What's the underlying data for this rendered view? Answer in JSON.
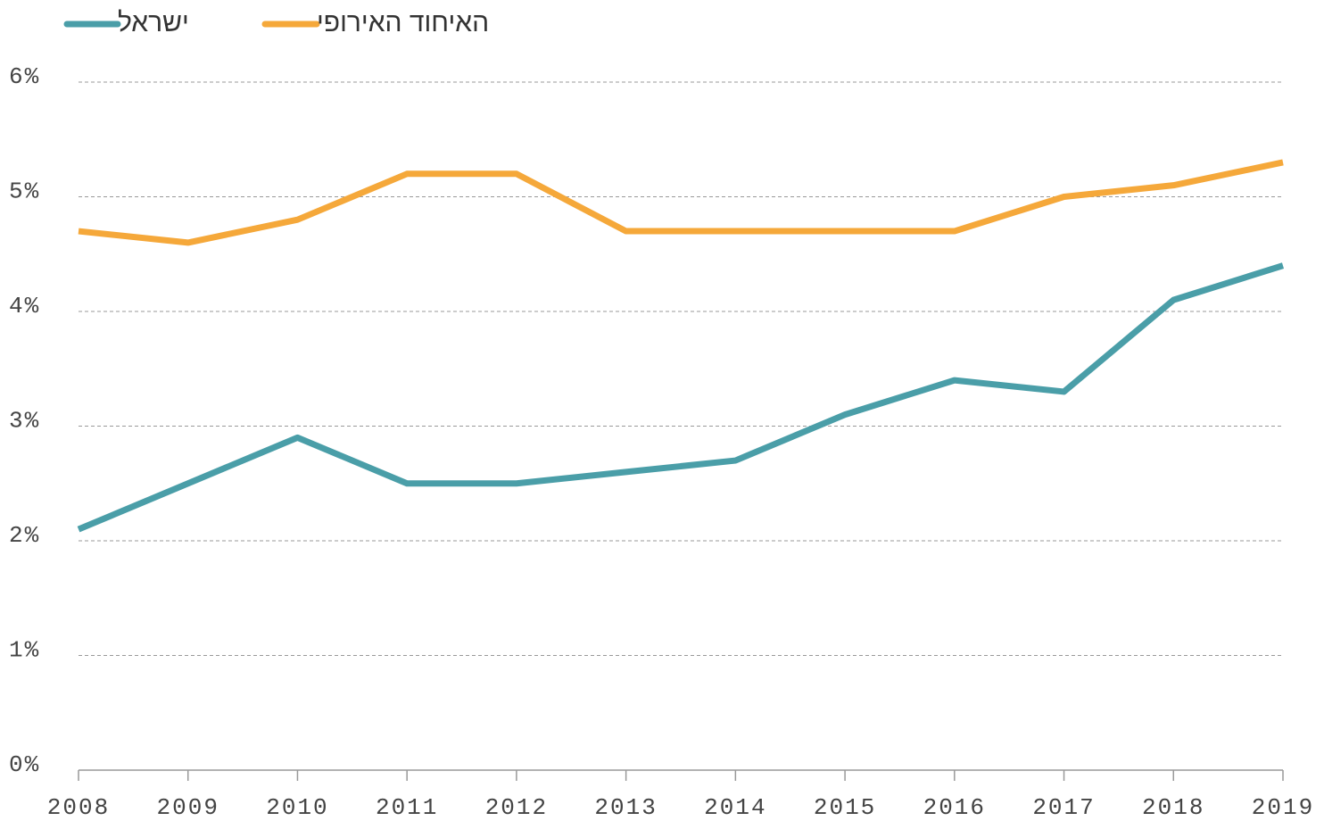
{
  "chart_data": {
    "type": "line",
    "categories": [
      "2008",
      "2009",
      "2010",
      "2011",
      "2012",
      "2013",
      "2014",
      "2015",
      "2016",
      "2017",
      "2018",
      "2019"
    ],
    "series": [
      {
        "name": "ישראל",
        "color": "#4a9ea8",
        "values": [
          2.1,
          2.5,
          2.9,
          2.5,
          2.5,
          2.6,
          2.7,
          3.1,
          3.4,
          3.3,
          4.1,
          4.4
        ]
      },
      {
        "name": "האיחוד האירופי",
        "color": "#f5a83a",
        "values": [
          4.7,
          4.6,
          4.8,
          5.2,
          5.2,
          4.7,
          4.7,
          4.7,
          4.7,
          5.0,
          5.1,
          5.3
        ]
      }
    ],
    "ylim": [
      0,
      6
    ],
    "yticks": [
      {
        "value": 0,
        "label": "0%"
      },
      {
        "value": 1,
        "label": "1%"
      },
      {
        "value": 2,
        "label": "2%"
      },
      {
        "value": 3,
        "label": "3%"
      },
      {
        "value": 4,
        "label": "4%"
      },
      {
        "value": 5,
        "label": "5%"
      },
      {
        "value": 6,
        "label": "6%"
      }
    ],
    "grid": true,
    "legend": "top"
  }
}
